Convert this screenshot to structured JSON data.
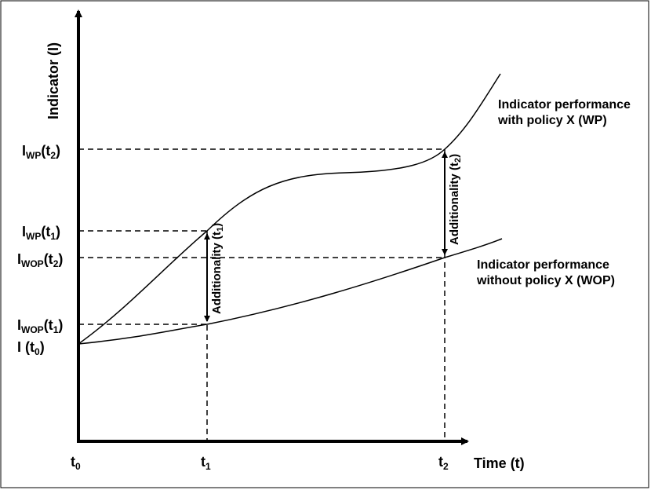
{
  "y_axis": {
    "title": "Indicator (I)"
  },
  "x_axis": {
    "title": "Time (t)"
  },
  "y_labels": {
    "iwp_t2": {
      "base": "I",
      "sub": "WP",
      "arg_pre": "(t",
      "arg_sub": "2",
      "arg_post": ")"
    },
    "iwp_t1": {
      "base": "I",
      "sub": "WP",
      "arg_pre": "(t",
      "arg_sub": "1",
      "arg_post": ")"
    },
    "iwop_t2": {
      "base": "I",
      "sub": "WOP",
      "arg_pre": "(t",
      "arg_sub": "2",
      "arg_post": ")"
    },
    "iwop_t1": {
      "base": "I",
      "sub": "WOP",
      "arg_pre": "(t",
      "arg_sub": "1",
      "arg_post": ")"
    },
    "i_t0": {
      "base": "I ",
      "arg_pre": "(t",
      "arg_sub": "0",
      "arg_post": ")"
    }
  },
  "x_labels": {
    "t0": {
      "base": "t",
      "sub": "0"
    },
    "t1": {
      "base": "t",
      "sub": "1"
    },
    "t2": {
      "base": "t",
      "sub": "2"
    }
  },
  "curves": {
    "wp": {
      "line1": "Indicator performance",
      "line2": "with policy X (WP)"
    },
    "wop": {
      "line1": "Indicator performance",
      "line2": "without policy X (WOP)"
    }
  },
  "additionality": {
    "t1": {
      "text": "Additionality (t",
      "sub": "1",
      "close": ")"
    },
    "t2": {
      "text": "Additionality (t",
      "sub": "2",
      "close": ")"
    }
  }
}
